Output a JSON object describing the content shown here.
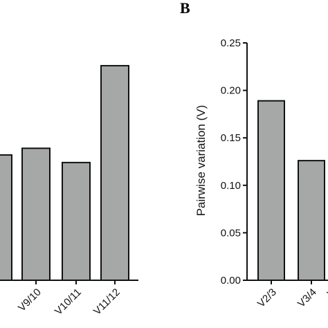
{
  "chart_data": [
    {
      "type": "bar",
      "categories": [
        "",
        "V9/10",
        "V10/11",
        "V11/12"
      ],
      "values": [
        0.132,
        0.139,
        0.124,
        0.226
      ],
      "ylim": [
        0,
        0.25
      ],
      "bar_color": "#a5a8a6",
      "grid": false
    },
    {
      "type": "bar",
      "panel_label": "B",
      "categories": [
        "V2/3",
        "V3/4",
        "V"
      ],
      "values": [
        0.189,
        0.126,
        null
      ],
      "ylabel": "Pairwise variation (V)",
      "ylim": [
        0,
        0.25
      ],
      "yticks": [
        "0.00",
        "0.05",
        "0.10",
        "0.15",
        "0.20",
        "0.25"
      ],
      "bar_color": "#a5a8a6",
      "grid": false
    }
  ]
}
